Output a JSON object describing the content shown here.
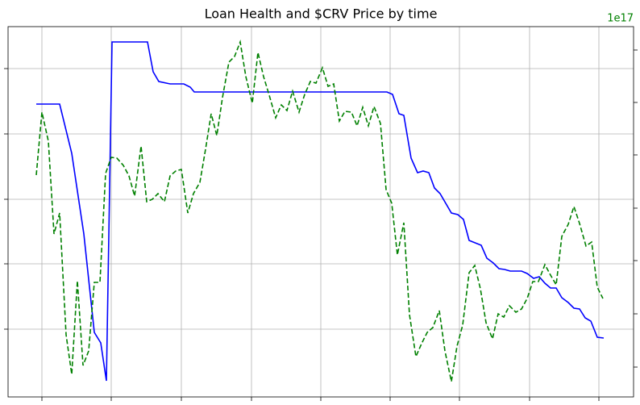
{
  "chart_data": {
    "type": "line",
    "title": "Loan Health and $CRV Price by time",
    "y2_offset_text": "1e17",
    "y2_offset_color": "#008000",
    "xlim": [
      0,
      776
    ],
    "xticks": [
      42,
      128,
      215,
      302,
      388,
      474,
      560,
      647,
      733
    ],
    "ylim": [
      0,
      459
    ],
    "yticks": [
      84,
      165,
      245,
      326,
      407
    ],
    "y2lim": [
      0,
      459
    ],
    "y2ticks": [
      37,
      103,
      169,
      234,
      300,
      365,
      430
    ],
    "grid": true,
    "series": [
      {
        "color": "#0000ff",
        "linestyle": "solid",
        "axis": "y",
        "x": [
          35,
          64,
          79,
          94,
          107,
          115,
          122,
          129,
          173,
          180,
          187,
          201,
          218,
          226,
          231,
          470,
          477,
          485,
          491,
          500,
          508,
          515,
          522,
          529,
          536,
          550,
          558,
          565,
          572,
          587,
          594,
          602,
          609,
          616,
          623,
          637,
          644,
          652,
          659,
          666,
          673,
          680,
          687,
          695,
          702,
          709,
          716,
          723,
          731,
          739
        ],
        "values": [
          363,
          363,
          302,
          202,
          80,
          67,
          20,
          440,
          440,
          403,
          391,
          388,
          388,
          384,
          378,
          378,
          375,
          351,
          349,
          296,
          278,
          280,
          278,
          259,
          252,
          228,
          226,
          220,
          194,
          188,
          172,
          166,
          159,
          158,
          156,
          156,
          153,
          147,
          149,
          141,
          135,
          135,
          123,
          117,
          110,
          109,
          98,
          94,
          74,
          73
        ]
      },
      {
        "color": "#008000",
        "linestyle": "dashed",
        "axis": "y2",
        "x": [
          35,
          42,
          50,
          57,
          64,
          72,
          79,
          86,
          93,
          100,
          107,
          114,
          121,
          128,
          135,
          143,
          150,
          157,
          165,
          172,
          179,
          186,
          194,
          201,
          208,
          215,
          223,
          230,
          238,
          245,
          252,
          259,
          266,
          274,
          281,
          288,
          295,
          303,
          310,
          317,
          324,
          332,
          339,
          346,
          353,
          361,
          368,
          375,
          382,
          390,
          397,
          404,
          411,
          418,
          426,
          433,
          440,
          447,
          454,
          462,
          469,
          476,
          483,
          491,
          498,
          506,
          513,
          520,
          527,
          535,
          542,
          550,
          557,
          564,
          572,
          579,
          586,
          593,
          601,
          608,
          615,
          622,
          630,
          637,
          644,
          651,
          658,
          666,
          673,
          680,
          687,
          695,
          702,
          709,
          717,
          724,
          731,
          738
        ],
        "values": [
          275,
          353,
          317,
          202,
          228,
          77,
          28,
          144,
          39,
          57,
          142,
          142,
          277,
          297,
          296,
          287,
          274,
          249,
          311,
          242,
          245,
          252,
          242,
          274,
          280,
          282,
          228,
          252,
          266,
          307,
          351,
          324,
          371,
          415,
          422,
          440,
          397,
          364,
          427,
          397,
          374,
          346,
          362,
          355,
          379,
          353,
          375,
          391,
          389,
          408,
          385,
          388,
          342,
          354,
          353,
          336,
          359,
          336,
          360,
          339,
          257,
          240,
          176,
          216,
          102,
          50,
          66,
          80,
          86,
          107,
          57,
          19,
          63,
          89,
          154,
          163,
          134,
          92,
          72,
          103,
          99,
          113,
          105,
          109,
          122,
          143,
          143,
          164,
          151,
          139,
          199,
          214,
          236,
          215,
          187,
          192,
          136,
          122
        ]
      }
    ]
  }
}
